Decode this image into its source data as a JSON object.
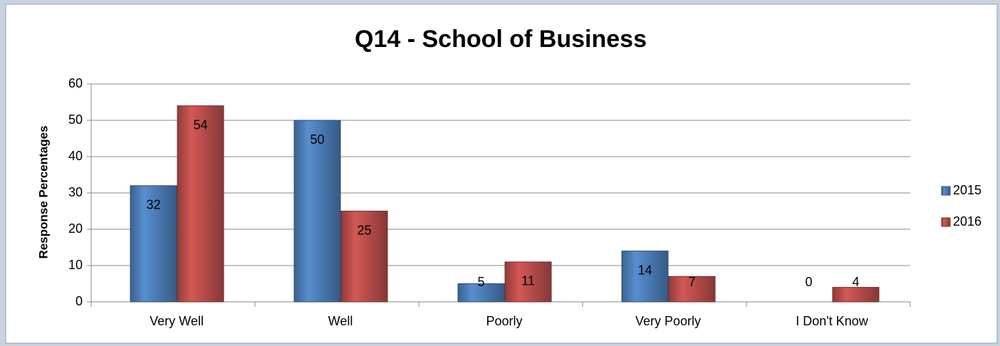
{
  "chart_data": {
    "type": "bar",
    "title": "Q14 - School of Business",
    "y_label": "Response Percentages",
    "categories": [
      "Very Well",
      "Well",
      "Poorly",
      "Very Poorly",
      "I Don't Know"
    ],
    "series": [
      {
        "name": "2015",
        "color": "#4f81bd",
        "values": [
          32,
          50,
          5,
          14,
          0
        ]
      },
      {
        "name": "2016",
        "color": "#c0504d",
        "values": [
          54,
          25,
          11,
          7,
          4
        ]
      }
    ],
    "ylim": [
      0,
      60
    ],
    "yticks": [
      0,
      10,
      20,
      30,
      40,
      50,
      60
    ],
    "grid": true,
    "legend": "right"
  }
}
